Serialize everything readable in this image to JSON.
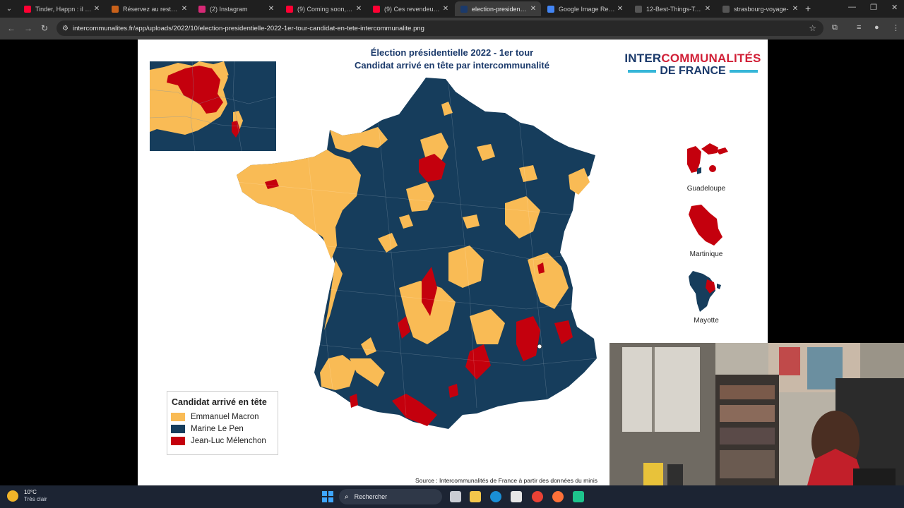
{
  "browser": {
    "tabs": [
      {
        "label": "Tinder, Happn : il y p",
        "favicon_color": "#ff0033",
        "active": false
      },
      {
        "label": "Réservez au restaura",
        "favicon_color": "#c9611a",
        "active": false
      },
      {
        "label": "(2) Instagram",
        "favicon_color": "#d62976",
        "active": false
      },
      {
        "label": "(9) Coming soon, a n",
        "favicon_color": "#ff0033",
        "active": false
      },
      {
        "label": "(9) Ces revendeurs d",
        "favicon_color": "#ff0033",
        "active": false
      },
      {
        "label": "election-presidentiell",
        "favicon_color": "#1b3a6b",
        "active": true
      },
      {
        "label": "Google Image Result",
        "favicon_color": "#4285f4",
        "active": false
      },
      {
        "label": "12-Best-Things-To-D",
        "favicon_color": "#555555",
        "active": false
      },
      {
        "label": "strasbourg-voyage-",
        "favicon_color": "#555555",
        "active": false
      }
    ],
    "url": "intercommunalites.fr/app/uploads/2022/10/election-presidentielle-2022-1er-tour-candidat-en-tete-intercommunalite.png"
  },
  "map": {
    "title_line1": "Élection présidentielle 2022 - 1er tour",
    "title_line2": "Candidat arrivé en tête par intercommunalité",
    "brand_line1_a": "INTER",
    "brand_line1_b": "COMMUNALITÉS",
    "brand_line2": "DE FRANCE",
    "overseas": [
      "Guadeloupe",
      "Martinique",
      "Mayotte"
    ],
    "legend_title": "Candidat arrivé en tête",
    "legend": [
      {
        "label": "Emmanuel Macron",
        "color": "#f9bb55"
      },
      {
        "label": "Marine Le Pen",
        "color": "#163d5c"
      },
      {
        "label": "Jean-Luc Mélenchon",
        "color": "#c4000d"
      }
    ],
    "source": "Source : Intercommunalités de France à partir des données du minis"
  },
  "taskbar": {
    "temperature": "10°C",
    "weather": "Très clair",
    "search_placeholder": "Rechercher"
  }
}
